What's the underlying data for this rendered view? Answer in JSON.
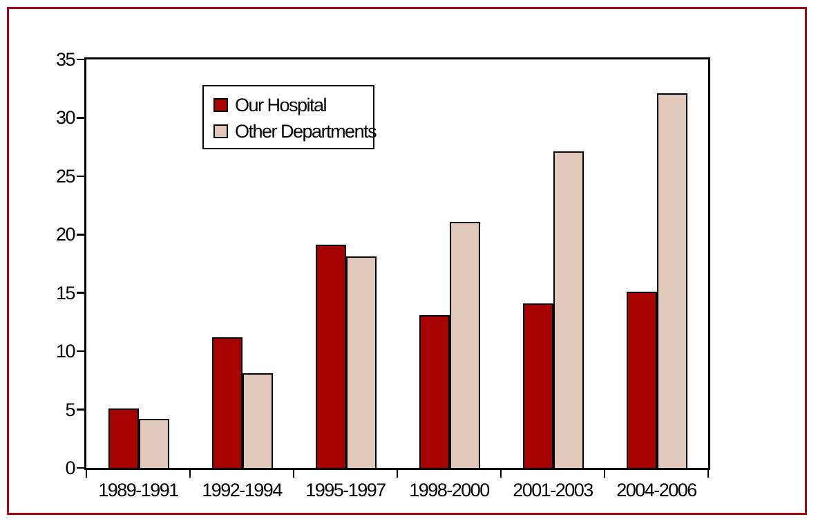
{
  "figure": {
    "border_color": "#b20412",
    "background_color": "#ffffff",
    "axis_color": "#000000"
  },
  "chart_data": {
    "type": "bar",
    "title": "",
    "xlabel": "",
    "ylabel": "",
    "categories": [
      "1989-1991",
      "1992-1994",
      "1995-1997",
      "1998-2000",
      "2001-2003",
      "2004-2006"
    ],
    "series": [
      {
        "name": "Our Hospital",
        "color": "#a60300",
        "values": [
          5.1,
          11.2,
          19.1,
          13.1,
          14.1,
          15.1
        ]
      },
      {
        "name": "Other Departments",
        "color": "#e0c8ba",
        "values": [
          4.2,
          8.1,
          18.1,
          21.1,
          27.1,
          32.1
        ]
      }
    ],
    "ylim": [
      0,
      35
    ],
    "yticks": [
      0,
      5,
      10,
      15,
      20,
      25,
      30,
      35
    ],
    "grid": false,
    "legend_position": "upper-left-inside",
    "bar_outline_color": "#000000"
  }
}
